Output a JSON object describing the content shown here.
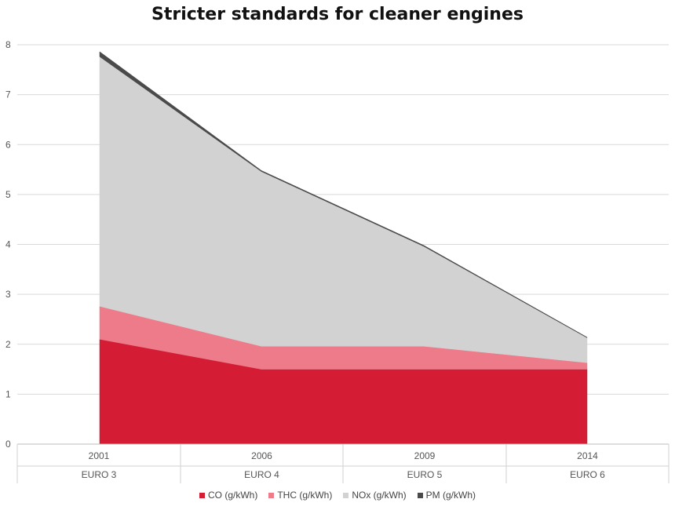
{
  "chart_data": {
    "type": "area",
    "stacked": true,
    "title": "Stricter standards for cleaner engines",
    "categories": [
      "2001",
      "2006",
      "2009",
      "2014"
    ],
    "sub_categories": [
      "EURO 3",
      "EURO 4",
      "EURO 5",
      "EURO 6"
    ],
    "ylim": [
      0,
      8
    ],
    "yticks": [
      "0",
      "1",
      "2",
      "3",
      "4",
      "5",
      "6",
      "7",
      "8"
    ],
    "grid": true,
    "legend_position": "bottom",
    "series": [
      {
        "name": "CO (g/kWh)",
        "values": [
          2.1,
          1.5,
          1.5,
          1.5
        ],
        "color": "#d41c35"
      },
      {
        "name": "THC (g/kWh)",
        "values": [
          0.66,
          0.46,
          0.46,
          0.13
        ],
        "color": "#ed7b8a"
      },
      {
        "name": "NOx (g/kWh)",
        "values": [
          5.0,
          3.5,
          2.0,
          0.5
        ],
        "color": "#d2d2d2"
      },
      {
        "name": "PM (g/kWh)",
        "values": [
          0.1,
          0.02,
          0.02,
          0.01
        ],
        "color": "#4a4a4a"
      }
    ]
  }
}
